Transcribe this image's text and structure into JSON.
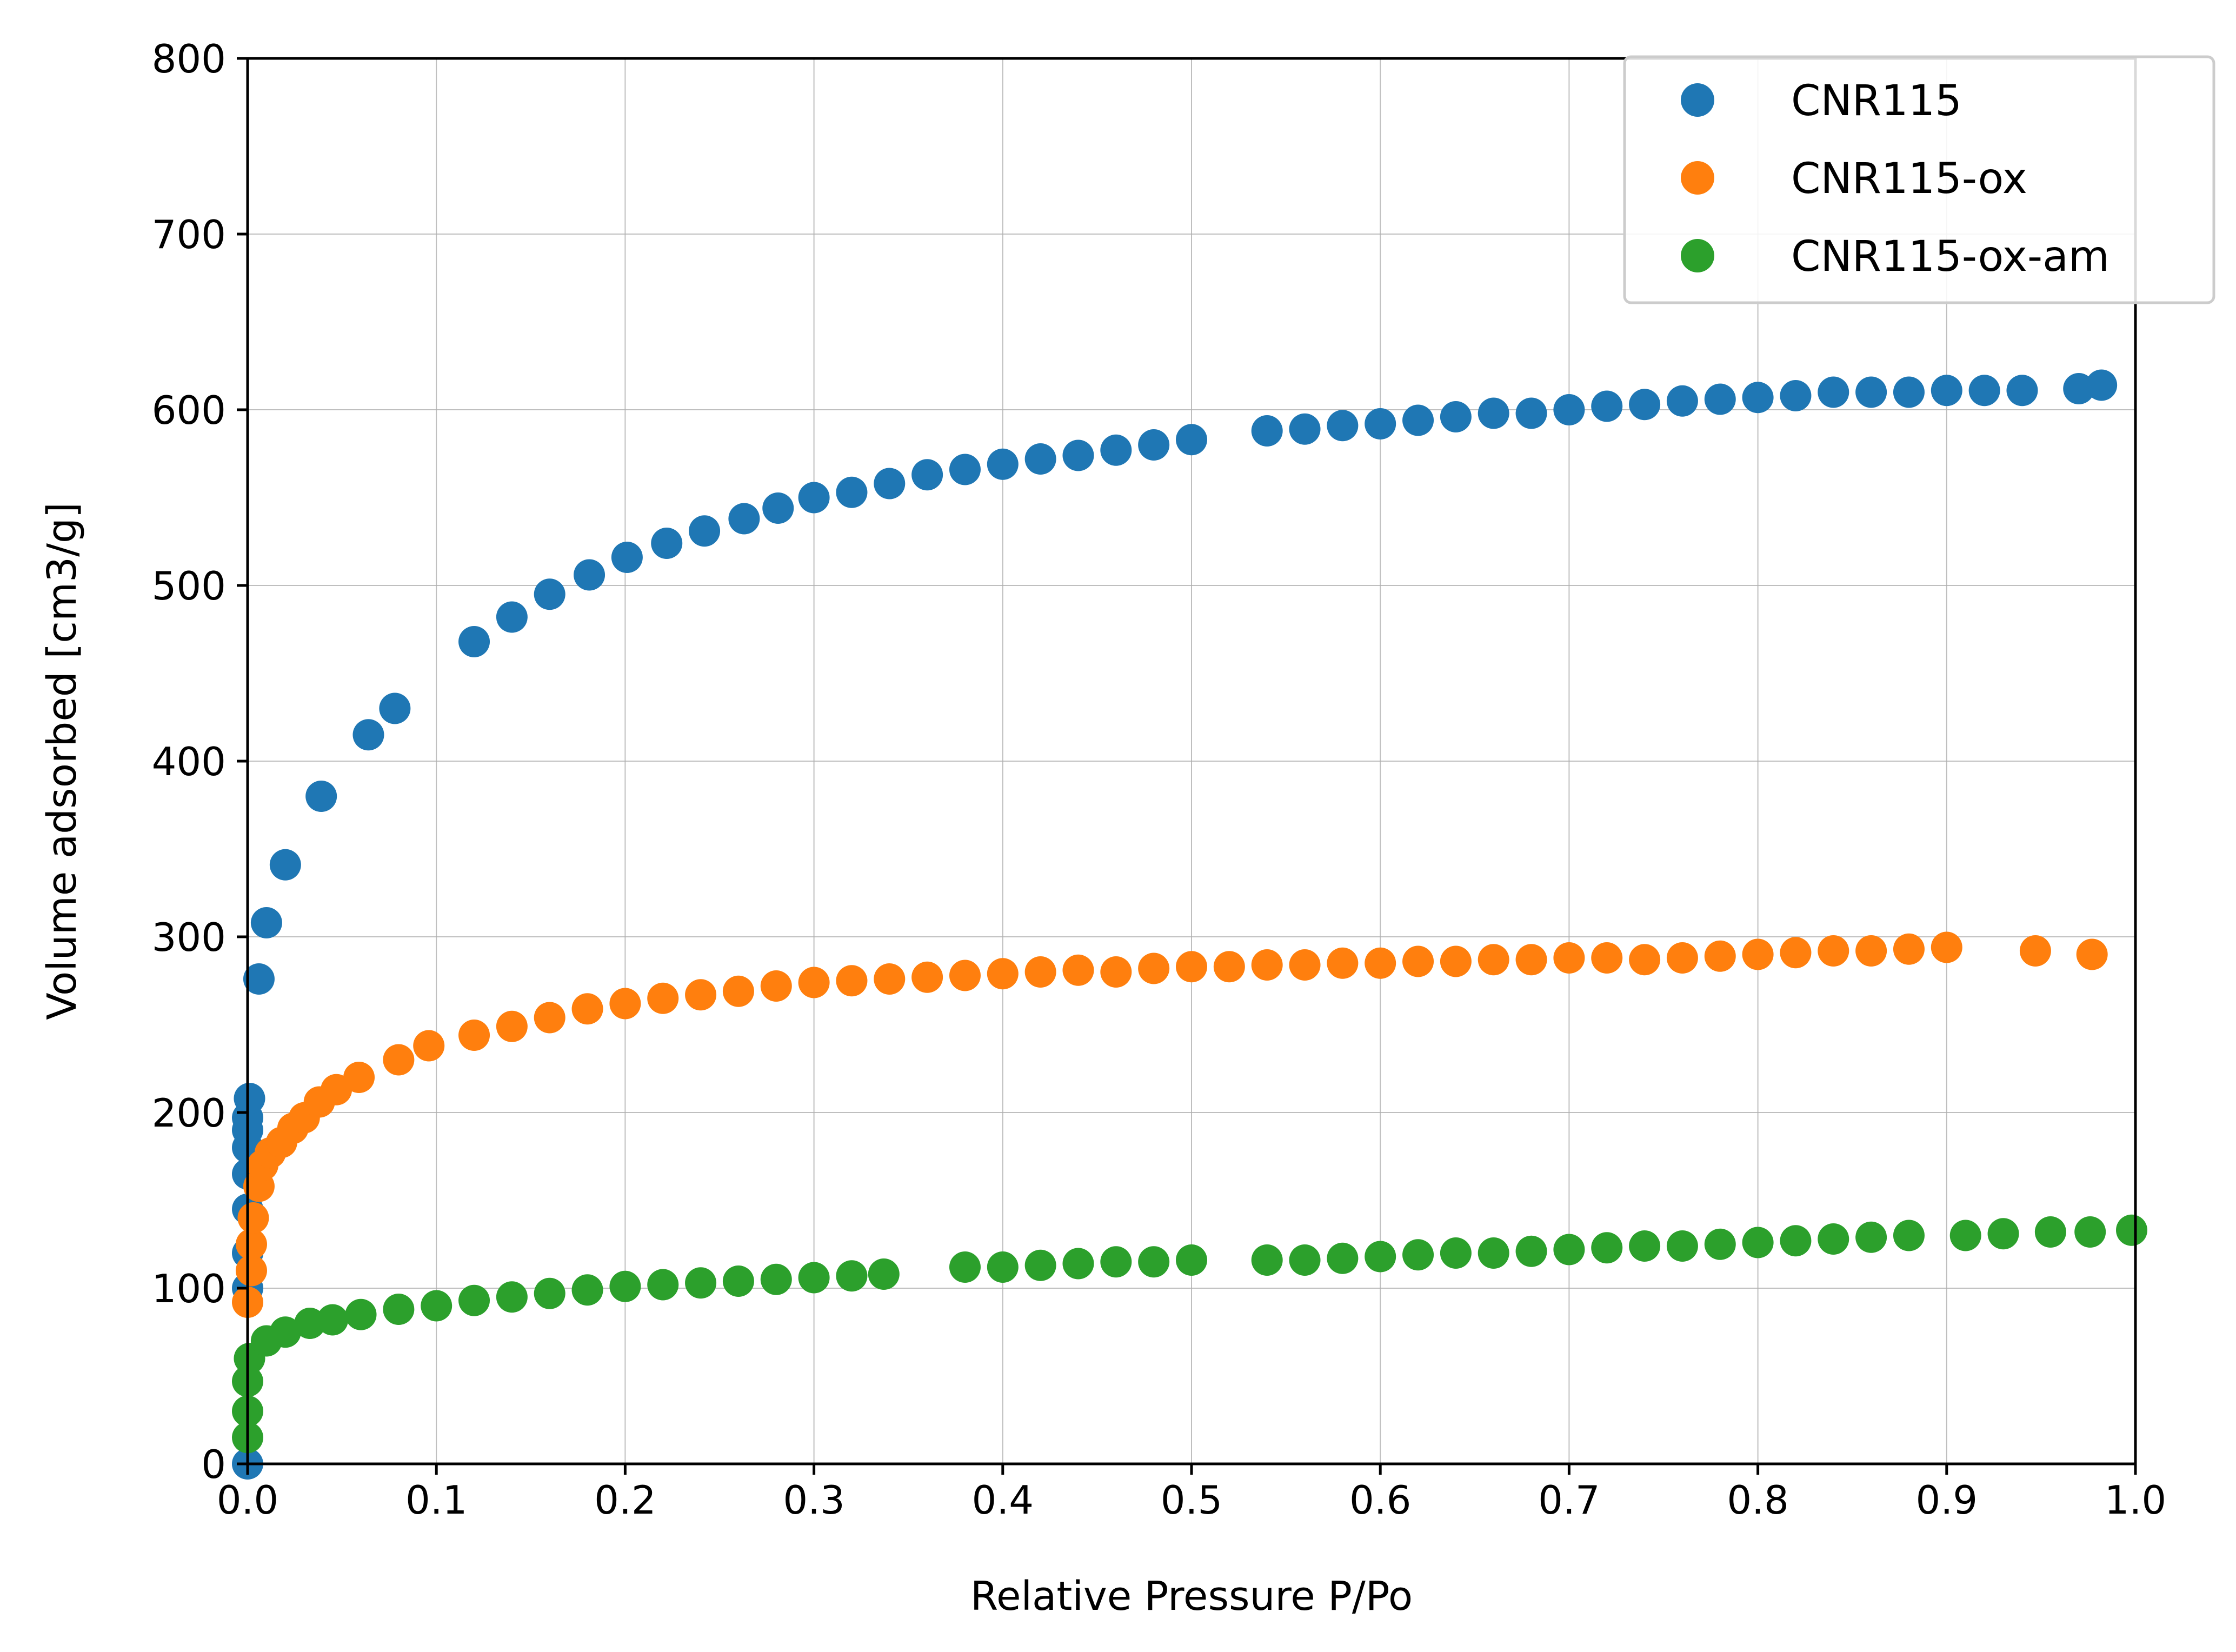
{
  "chart_data": {
    "type": "scatter",
    "title": "",
    "xlabel": "Relative Pressure P/Po",
    "ylabel": "Volume adsorbed [cm3/g]",
    "xlim": [
      0.0,
      1.0
    ],
    "ylim": [
      0,
      800
    ],
    "x_ticks": [
      0.0,
      0.1,
      0.2,
      0.3,
      0.4,
      0.5,
      0.6,
      0.7,
      0.8,
      0.9,
      1.0
    ],
    "x_tick_labels": [
      "0.0",
      "0.1",
      "0.2",
      "0.3",
      "0.4",
      "0.5",
      "0.6",
      "0.7",
      "0.8",
      "0.9",
      "1.0"
    ],
    "y_ticks": [
      0,
      100,
      200,
      300,
      400,
      500,
      600,
      700,
      800
    ],
    "y_tick_labels": [
      "0",
      "100",
      "200",
      "300",
      "400",
      "500",
      "600",
      "700",
      "800"
    ],
    "grid": true,
    "legend_position": "top-right",
    "series": [
      {
        "name": "CNR115",
        "color": "#1f77b4",
        "points": [
          [
            0.0,
            0
          ],
          [
            0.0,
            100
          ],
          [
            0.0,
            120
          ],
          [
            0.0,
            145
          ],
          [
            0.0,
            165
          ],
          [
            0.0,
            180
          ],
          [
            0.0,
            190
          ],
          [
            0.0,
            197
          ],
          [
            0.001,
            208
          ],
          [
            0.006,
            276
          ],
          [
            0.01,
            308
          ],
          [
            0.02,
            341
          ],
          [
            0.039,
            380
          ],
          [
            0.064,
            415
          ],
          [
            0.078,
            430
          ],
          [
            0.12,
            468
          ],
          [
            0.14,
            482
          ],
          [
            0.16,
            495
          ],
          [
            0.181,
            506
          ],
          [
            0.201,
            516
          ],
          [
            0.222,
            524
          ],
          [
            0.242,
            531
          ],
          [
            0.263,
            538
          ],
          [
            0.281,
            544
          ],
          [
            0.3,
            550
          ],
          [
            0.32,
            553
          ],
          [
            0.34,
            558
          ],
          [
            0.36,
            563
          ],
          [
            0.38,
            566
          ],
          [
            0.4,
            569
          ],
          [
            0.42,
            572
          ],
          [
            0.44,
            574
          ],
          [
            0.46,
            577
          ],
          [
            0.48,
            580
          ],
          [
            0.5,
            583
          ],
          [
            0.54,
            588
          ],
          [
            0.56,
            589
          ],
          [
            0.58,
            591
          ],
          [
            0.6,
            592
          ],
          [
            0.62,
            594
          ],
          [
            0.64,
            596
          ],
          [
            0.66,
            598
          ],
          [
            0.68,
            598
          ],
          [
            0.7,
            600
          ],
          [
            0.72,
            602
          ],
          [
            0.74,
            603
          ],
          [
            0.76,
            605
          ],
          [
            0.78,
            606
          ],
          [
            0.8,
            607
          ],
          [
            0.82,
            608
          ],
          [
            0.84,
            610
          ],
          [
            0.86,
            610
          ],
          [
            0.88,
            610
          ],
          [
            0.9,
            611
          ],
          [
            0.92,
            611
          ],
          [
            0.94,
            611
          ],
          [
            0.97,
            612
          ],
          [
            0.982,
            614
          ]
        ]
      },
      {
        "name": "CNR115-ox",
        "color": "#ff7f0e",
        "points": [
          [
            0.0,
            92
          ],
          [
            0.002,
            110
          ],
          [
            0.002,
            125
          ],
          [
            0.003,
            140
          ],
          [
            0.006,
            158
          ],
          [
            0.008,
            170
          ],
          [
            0.012,
            177
          ],
          [
            0.018,
            183
          ],
          [
            0.024,
            191
          ],
          [
            0.03,
            197
          ],
          [
            0.038,
            206
          ],
          [
            0.047,
            213
          ],
          [
            0.059,
            220
          ],
          [
            0.08,
            230
          ],
          [
            0.096,
            238
          ],
          [
            0.12,
            244
          ],
          [
            0.14,
            249
          ],
          [
            0.16,
            254
          ],
          [
            0.18,
            259
          ],
          [
            0.2,
            262
          ],
          [
            0.22,
            265
          ],
          [
            0.24,
            267
          ],
          [
            0.26,
            269
          ],
          [
            0.28,
            272
          ],
          [
            0.3,
            274
          ],
          [
            0.32,
            275
          ],
          [
            0.34,
            276
          ],
          [
            0.36,
            277
          ],
          [
            0.38,
            278
          ],
          [
            0.4,
            279
          ],
          [
            0.42,
            280
          ],
          [
            0.44,
            281
          ],
          [
            0.46,
            280
          ],
          [
            0.48,
            282
          ],
          [
            0.5,
            283
          ],
          [
            0.52,
            283
          ],
          [
            0.54,
            284
          ],
          [
            0.56,
            284
          ],
          [
            0.58,
            285
          ],
          [
            0.6,
            285
          ],
          [
            0.62,
            286
          ],
          [
            0.64,
            286
          ],
          [
            0.66,
            287
          ],
          [
            0.68,
            287
          ],
          [
            0.7,
            288
          ],
          [
            0.72,
            288
          ],
          [
            0.74,
            287
          ],
          [
            0.76,
            288
          ],
          [
            0.78,
            289
          ],
          [
            0.8,
            290
          ],
          [
            0.82,
            291
          ],
          [
            0.84,
            292
          ],
          [
            0.86,
            292
          ],
          [
            0.88,
            293
          ],
          [
            0.9,
            294
          ],
          [
            0.947,
            292
          ],
          [
            0.977,
            290
          ]
        ]
      },
      {
        "name": "CNR115-ox-am",
        "color": "#2ca02c",
        "points": [
          [
            0.0,
            15
          ],
          [
            0.0,
            30
          ],
          [
            0.0,
            47
          ],
          [
            0.001,
            60
          ],
          [
            0.01,
            70
          ],
          [
            0.02,
            75
          ],
          [
            0.033,
            80
          ],
          [
            0.045,
            82
          ],
          [
            0.06,
            85
          ],
          [
            0.08,
            88
          ],
          [
            0.1,
            90
          ],
          [
            0.12,
            93
          ],
          [
            0.14,
            95
          ],
          [
            0.16,
            97
          ],
          [
            0.18,
            99
          ],
          [
            0.2,
            101
          ],
          [
            0.22,
            102
          ],
          [
            0.24,
            103
          ],
          [
            0.26,
            104
          ],
          [
            0.28,
            105
          ],
          [
            0.3,
            106
          ],
          [
            0.32,
            107
          ],
          [
            0.337,
            108
          ],
          [
            0.38,
            112
          ],
          [
            0.4,
            112
          ],
          [
            0.42,
            113
          ],
          [
            0.44,
            114
          ],
          [
            0.46,
            115
          ],
          [
            0.48,
            115
          ],
          [
            0.5,
            116
          ],
          [
            0.54,
            116
          ],
          [
            0.56,
            116
          ],
          [
            0.58,
            117
          ],
          [
            0.6,
            118
          ],
          [
            0.62,
            119
          ],
          [
            0.64,
            120
          ],
          [
            0.66,
            120
          ],
          [
            0.68,
            121
          ],
          [
            0.7,
            122
          ],
          [
            0.72,
            123
          ],
          [
            0.74,
            124
          ],
          [
            0.76,
            124
          ],
          [
            0.78,
            125
          ],
          [
            0.8,
            126
          ],
          [
            0.82,
            127
          ],
          [
            0.84,
            128
          ],
          [
            0.86,
            129
          ],
          [
            0.88,
            130
          ],
          [
            0.91,
            130
          ],
          [
            0.93,
            131
          ],
          [
            0.955,
            132
          ],
          [
            0.976,
            132
          ],
          [
            0.998,
            133
          ]
        ]
      }
    ]
  }
}
